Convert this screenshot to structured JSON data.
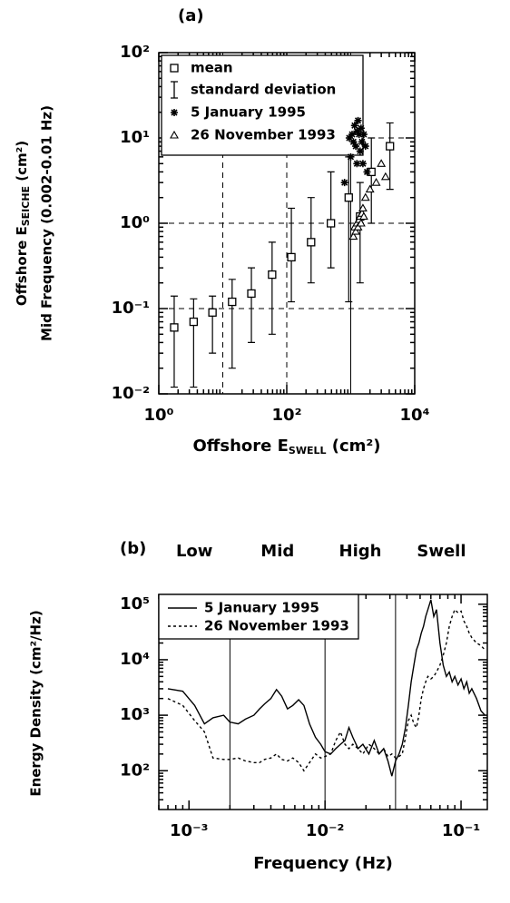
{
  "chart_data": [
    {
      "type": "scatter",
      "label": "(a)",
      "ylabel": [
        "Offshore E",
        "SEICHE",
        " (cm²)"
      ],
      "ylabel2": "Mid Frequency (0.002-0.01 Hz)",
      "xlabel": [
        "Offshore E",
        "SWELL",
        " (cm²)"
      ],
      "log_x": true,
      "log_y": true,
      "xlim": [
        1,
        10000
      ],
      "ylim": [
        0.01,
        100
      ],
      "xticks": [
        {
          "value": 1,
          "label": "10⁰"
        },
        {
          "value": 100,
          "label": "10²"
        },
        {
          "value": 10000,
          "label": "10⁴"
        }
      ],
      "yticks": [
        {
          "value": 0.01,
          "label": "10⁻²"
        },
        {
          "value": 0.1,
          "label": "10⁻¹"
        },
        {
          "value": 1,
          "label": "10⁰"
        },
        {
          "value": 10,
          "label": "10¹"
        },
        {
          "value": 100,
          "label": "10²"
        }
      ],
      "gridx": [
        10,
        100
      ],
      "gridy": [
        0.1,
        1,
        10
      ],
      "vline": 1000,
      "series": [
        {
          "name": "mean",
          "marker": "square",
          "color": "#000000",
          "x": [
            1.74,
            3.5,
            6.9,
            14,
            28,
            59,
            118,
            240,
            490,
            930,
            1400,
            2100,
            4100
          ],
          "values": [
            0.06,
            0.07,
            0.09,
            0.12,
            0.15,
            0.25,
            0.4,
            0.6,
            1.0,
            2.0,
            1.2,
            4,
            8
          ]
        },
        {
          "name": "5 January 1995",
          "marker": "star",
          "color": "#000000",
          "x": [
            800,
            950,
            1000,
            1050,
            1100,
            1150,
            1200,
            1250,
            1300,
            1350,
            1400,
            1450,
            1500,
            1550,
            1600,
            1700,
            1800,
            1250
          ],
          "values": [
            3,
            10,
            6,
            11,
            9,
            14,
            8,
            12,
            16,
            11,
            7,
            13,
            9,
            5,
            11,
            8,
            4,
            5
          ]
        },
        {
          "name": "26 November 1993",
          "marker": "triangle",
          "color": "#000000",
          "x": [
            1100,
            1150,
            1200,
            1250,
            1300,
            1350,
            1400,
            1450,
            1500,
            1550,
            1600,
            1700,
            2000,
            2500,
            3000,
            3500
          ],
          "values": [
            0.7,
            0.9,
            0.8,
            1.0,
            0.9,
            1.1,
            1.2,
            1.0,
            1.3,
            1.5,
            1.2,
            2,
            2.5,
            3,
            5,
            3.5
          ]
        }
      ],
      "errorbars": {
        "name": "standard deviation",
        "lower": [
          0.012,
          0.012,
          0.03,
          0.02,
          0.04,
          0.05,
          0.12,
          0.2,
          0.3,
          0.12,
          0.2,
          1,
          2.5
        ],
        "upper": [
          0.14,
          0.13,
          0.14,
          0.22,
          0.3,
          0.6,
          1.5,
          2,
          4,
          6,
          3,
          10,
          15
        ]
      }
    },
    {
      "type": "line",
      "label": "(b)",
      "ylabel": "Energy Density (cm²/Hz)",
      "xlabel": "Frequency (Hz)",
      "log_x": true,
      "log_y": true,
      "xlim": [
        0.0006,
        0.156
      ],
      "ylim": [
        20,
        150000
      ],
      "xticks": [
        {
          "value": 0.001,
          "label": "10⁻³"
        },
        {
          "value": 0.01,
          "label": "10⁻²"
        },
        {
          "value": 0.1,
          "label": "10⁻¹"
        }
      ],
      "yticks": [
        {
          "value": 100,
          "label": "10²"
        },
        {
          "value": 1000,
          "label": "10³"
        },
        {
          "value": 10000,
          "label": "10⁴"
        },
        {
          "value": 100000,
          "label": "10⁵"
        }
      ],
      "bands": [
        "Low",
        "Mid",
        "High",
        "Swell"
      ],
      "band_edges": [
        0.002,
        0.01,
        0.033
      ],
      "x": [
        0.0007,
        0.0009,
        0.0011,
        0.0013,
        0.0015,
        0.0018,
        0.002,
        0.0023,
        0.0026,
        0.003,
        0.0033,
        0.0036,
        0.004,
        0.0044,
        0.0048,
        0.0053,
        0.0058,
        0.0064,
        0.007,
        0.0077,
        0.0085,
        0.0093,
        0.01,
        0.011,
        0.012,
        0.013,
        0.014,
        0.015,
        0.016,
        0.0175,
        0.019,
        0.021,
        0.023,
        0.025,
        0.027,
        0.029,
        0.031,
        0.033,
        0.035,
        0.037,
        0.039,
        0.041,
        0.043,
        0.045,
        0.047,
        0.049,
        0.051,
        0.053,
        0.055,
        0.057,
        0.06,
        0.063,
        0.066,
        0.07,
        0.074,
        0.078,
        0.082,
        0.086,
        0.09,
        0.095,
        0.1,
        0.105,
        0.11,
        0.115,
        0.12,
        0.13,
        0.14,
        0.15
      ],
      "series": [
        {
          "name": "5 January 1995",
          "style": "solid",
          "color": "#000000",
          "values": [
            3000,
            2700,
            1500,
            700,
            900,
            1000,
            750,
            700,
            850,
            1000,
            1300,
            1600,
            2000,
            2900,
            2200,
            1300,
            1500,
            1900,
            1500,
            700,
            400,
            300,
            220,
            200,
            250,
            300,
            350,
            600,
            400,
            250,
            300,
            200,
            350,
            200,
            250,
            150,
            80,
            150,
            200,
            300,
            600,
            1500,
            4000,
            8000,
            15000,
            20000,
            30000,
            40000,
            60000,
            80000,
            120000,
            60000,
            80000,
            20000,
            8000,
            5000,
            6000,
            4000,
            5000,
            3500,
            4500,
            3000,
            4000,
            2500,
            3000,
            2000,
            1200,
            1000
          ]
        },
        {
          "name": "26 November 1993",
          "style": "dotted",
          "color": "#000000",
          "values": [
            2000,
            1500,
            800,
            500,
            170,
            160,
            160,
            170,
            150,
            140,
            140,
            160,
            170,
            200,
            160,
            150,
            170,
            140,
            100,
            140,
            200,
            170,
            180,
            200,
            350,
            500,
            300,
            250,
            300,
            250,
            200,
            300,
            250,
            200,
            250,
            180,
            200,
            170,
            180,
            200,
            400,
            800,
            1000,
            700,
            600,
            1000,
            2000,
            3000,
            4000,
            5000,
            4500,
            5000,
            6000,
            8000,
            12000,
            20000,
            40000,
            60000,
            80000,
            70000,
            75000,
            50000,
            40000,
            30000,
            25000,
            20000,
            18000,
            15000
          ]
        }
      ]
    }
  ]
}
